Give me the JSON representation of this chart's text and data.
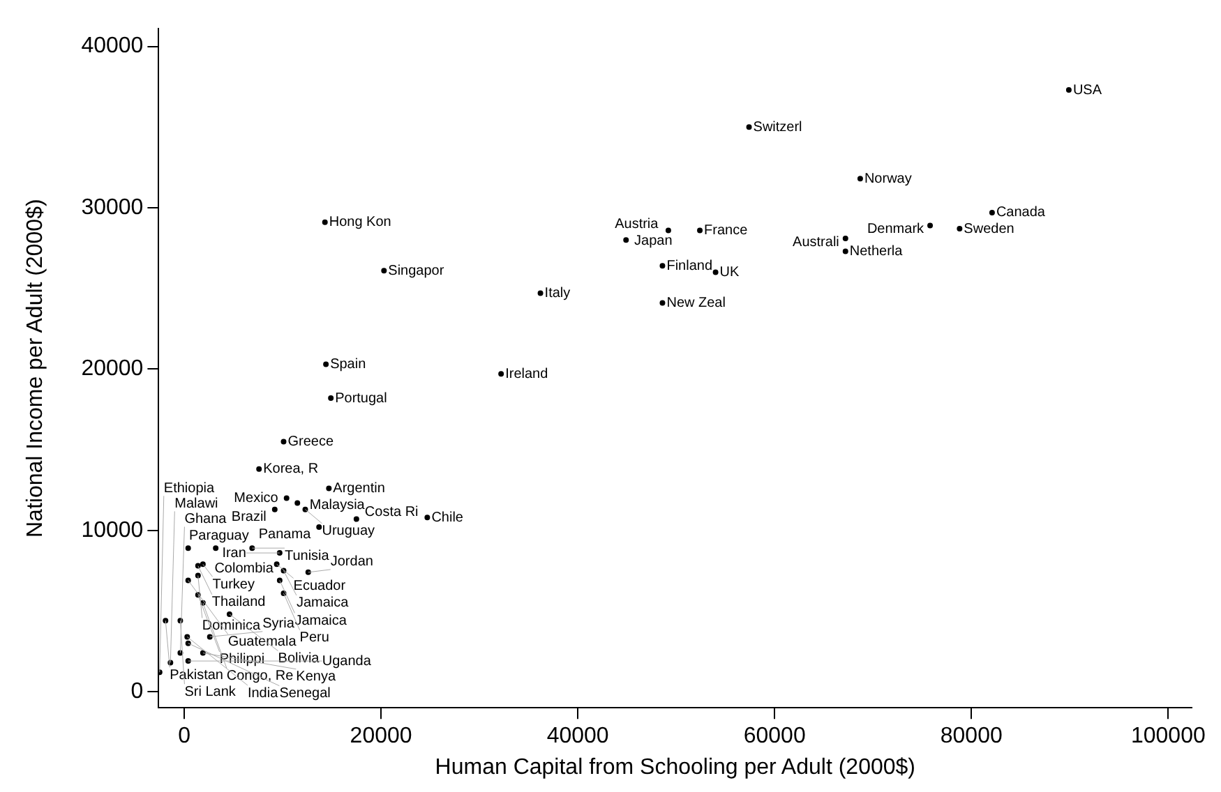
{
  "chart_data": {
    "type": "scatter",
    "xlabel": "Human Capital from Schooling per Adult (2000$)",
    "ylabel": "National Income per Adult (2000$)",
    "x": [
      89900,
      57400,
      68700,
      82100,
      75800,
      78800,
      67200,
      67200,
      14300,
      20300,
      36200,
      44900,
      49200,
      52400,
      48600,
      54000,
      48600,
      14400,
      14900,
      32200,
      10100,
      7600,
      14700,
      10400,
      11500,
      9200,
      12300,
      17500,
      24700,
      13700,
      400,
      3200,
      6900,
      9700,
      1900,
      1400,
      9400,
      10100,
      12600,
      1400,
      400,
      9700,
      1400,
      10100,
      1900,
      4600,
      -1900,
      -400,
      300,
      2600,
      400,
      -400,
      1900,
      -1400,
      400,
      -2500
    ],
    "values": [
      37300,
      35000,
      31800,
      29700,
      28900,
      28700,
      28100,
      27300,
      29100,
      26100,
      24700,
      28000,
      28600,
      28600,
      26400,
      26000,
      24100,
      20300,
      18200,
      19700,
      15500,
      13800,
      12600,
      12000,
      11700,
      11300,
      11300,
      10700,
      10800,
      10200,
      8900,
      8900,
      8900,
      8600,
      7900,
      7800,
      7900,
      7500,
      7400,
      7200,
      6900,
      6900,
      6000,
      6100,
      5500,
      4800,
      4400,
      4400,
      3400,
      3400,
      3000,
      2400,
      2400,
      1800,
      1900,
      1200
    ],
    "value_labels": [
      "USA",
      "Switzerl",
      "Norway",
      "Canada",
      "Denmark",
      "Sweden",
      "Australi",
      "Netherla",
      "Hong Kon",
      "Singapor",
      "Italy",
      "Japan",
      "Austria",
      "France",
      "Finland",
      "UK",
      "New Zeal",
      "Spain",
      "Portugal",
      "Ireland",
      "Greece",
      "Korea, R",
      "Argentin",
      "Mexico",
      "Malaysia",
      "Brazil",
      "Uruguay",
      "Costa Ri",
      "Chile",
      "Panama",
      "Paraguay",
      "Colombia",
      "Tunisia",
      "Iran",
      "Turkey",
      "Thailand",
      "Ecuador",
      "Jamaica",
      "Jordan",
      "Dominica",
      "Guatemala",
      "Jamaica",
      "Philippi",
      "Peru",
      "Congo, Re",
      "Bolivia",
      "Pakistan",
      "Sri Lank",
      "India",
      "Syria",
      "Senegal",
      "Ghana",
      "Kenya",
      "Malawi",
      "Uganda",
      "Ethiopia"
    ],
    "marker": "circle",
    "color": "#000000",
    "grid": false,
    "legend": false,
    "xlim": [
      -2600,
      102400
    ],
    "ylim": [
      -1000,
      41100
    ],
    "xticks": [
      0,
      20000,
      40000,
      60000,
      80000,
      100000
    ],
    "yticks": [
      0,
      10000,
      20000,
      30000,
      40000
    ]
  }
}
